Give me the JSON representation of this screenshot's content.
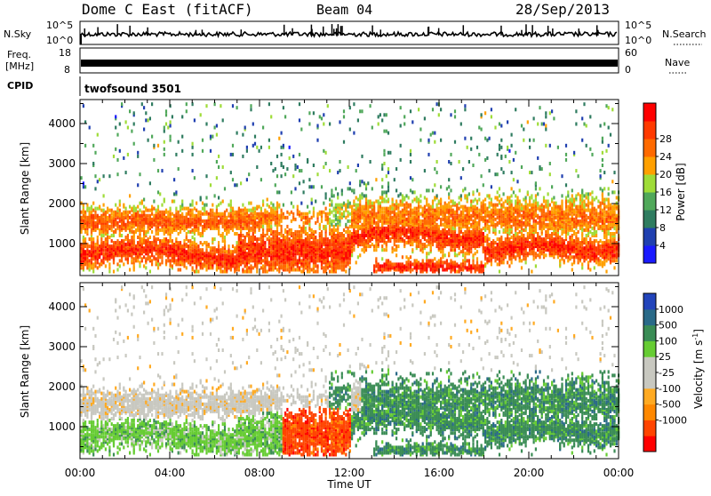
{
  "header": {
    "title": "Dome C East (fitACF)",
    "beam": "Beam 04",
    "date": "28/Sep/2013"
  },
  "nsky": {
    "label": "N.Sky",
    "ytick_top": "10^5",
    "ytick_bottom": "10^0",
    "right_tick_top": "10^5",
    "right_tick_bottom": "10^0",
    "right_label": "N.Search"
  },
  "freq": {
    "label_line1": "Freq.",
    "label_line2": "[MHz]",
    "ytick_top": "18",
    "ytick_bottom": "8",
    "right_tick_top": "60",
    "right_tick_bottom": "0",
    "right_label": "Nave"
  },
  "cpid": {
    "label": "CPID",
    "program": "twofsound 3501"
  },
  "colors": {
    "power_scale": [
      "#1a1aff",
      "#2040b0",
      "#2f7c60",
      "#50a85a",
      "#9fdc38",
      "#ffa000",
      "#ff6a00",
      "#ff3a00",
      "#ff0000"
    ],
    "velocity_scale": [
      "#ff0000",
      "#ff4400",
      "#ff8800",
      "#ffaa22",
      "#c8c8c0",
      "#c8c8c0",
      "#66cc33",
      "#3a8c55",
      "#2a6a88",
      "#2244bb"
    ]
  },
  "chart_data": [
    {
      "type": "heatmap",
      "name": "power",
      "xlabel": "",
      "ylabel": "Slant Range [km]",
      "x_range": [
        0,
        24
      ],
      "y_range": [
        200,
        4600
      ],
      "yticks": [
        "1000",
        "2000",
        "3000",
        "4000"
      ],
      "ytick_values": [
        1000,
        2000,
        3000,
        4000
      ],
      "colorbar": {
        "label": "Power [dB]",
        "ticks": [
          "4",
          "8",
          "12",
          "16",
          "20",
          "24",
          "28"
        ],
        "range": [
          0,
          32
        ]
      }
    },
    {
      "type": "heatmap",
      "name": "velocity",
      "xlabel": "Time UT",
      "ylabel": "Slant Range [km]",
      "x_range": [
        0,
        24
      ],
      "y_range": [
        200,
        4600
      ],
      "xticks": [
        "00:00",
        "04:00",
        "08:00",
        "12:00",
        "16:00",
        "20:00",
        "00:00"
      ],
      "xtick_values": [
        0,
        4,
        8,
        12,
        16,
        20,
        24
      ],
      "yticks": [
        "1000",
        "2000",
        "3000",
        "4000"
      ],
      "ytick_values": [
        1000,
        2000,
        3000,
        4000
      ],
      "colorbar": {
        "label": "Velocity [m s",
        "label_sup": "-1",
        "label_end": "]",
        "ticks": [
          "1000",
          "500",
          "100",
          "25",
          "-25",
          "-100",
          "-500",
          "-1000"
        ]
      }
    }
  ]
}
